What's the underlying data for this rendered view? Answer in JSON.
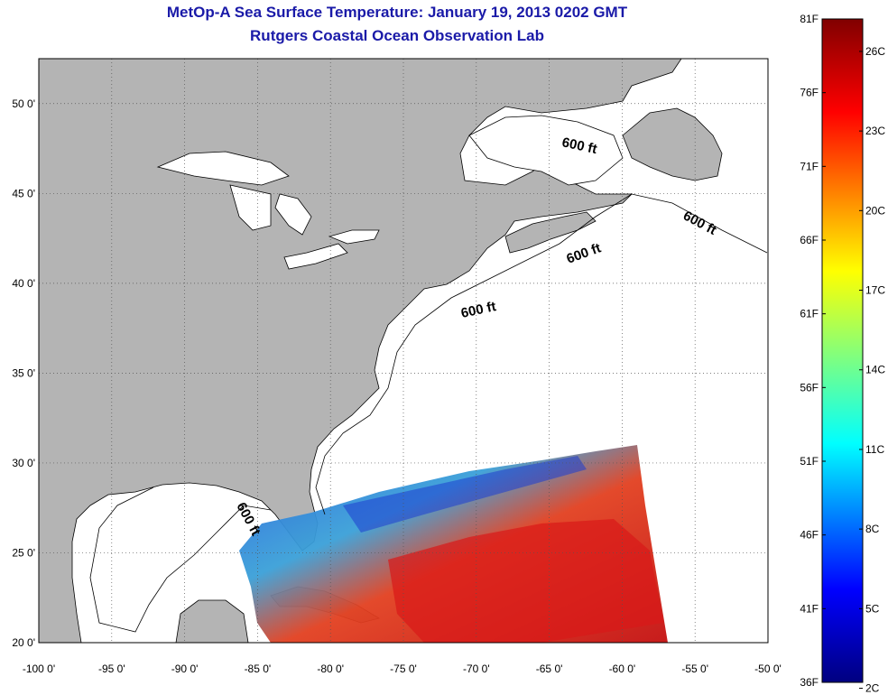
{
  "header": {
    "title": "MetOp-A Sea Surface Temperature:  January 19, 2013 0202 GMT",
    "subtitle": "Rutgers Coastal Ocean Observation Lab"
  },
  "map": {
    "lon_range": [
      -100,
      -50
    ],
    "lat_range": [
      20,
      52.5
    ],
    "lon_ticks": [
      "-100 0'",
      "-95 0'",
      "-90 0'",
      "-85 0'",
      "-80 0'",
      "-75 0'",
      "-70 0'",
      "-65 0'",
      "-60 0'",
      "-55 0'",
      "-50 0'"
    ],
    "lat_ticks": [
      "50 0'",
      "45 0'",
      "40 0'",
      "35 0'",
      "30 0'",
      "25 0'",
      "20 0'"
    ],
    "grid": "dotted",
    "land_color": "#b4b4b4",
    "ocean_color": "#ffffff",
    "isobath_label": "600 ft",
    "isobath_labels": [
      {
        "text": "600 ft",
        "location": "Gulf of St. Lawrence"
      },
      {
        "text": "600 ft",
        "location": "off Newfoundland"
      },
      {
        "text": "600 ft",
        "location": "Scotian Shelf"
      },
      {
        "text": "600 ft",
        "location": "south of New England"
      },
      {
        "text": "600 ft",
        "location": "west Florida shelf"
      }
    ]
  },
  "colorbar": {
    "min_f": "36F",
    "max_f": "81F",
    "f_labels": [
      "81F",
      "76F",
      "71F",
      "66F",
      "61F",
      "56F",
      "51F",
      "46F",
      "41F",
      "36F"
    ],
    "c_labels": [
      "26C",
      "23C",
      "20C",
      "17C",
      "14C",
      "11C",
      "8C",
      "5C",
      "2C"
    ],
    "colormap": [
      "#000080",
      "#0000ff",
      "#00ffff",
      "#ffff00",
      "#ff0000",
      "#800000"
    ]
  }
}
